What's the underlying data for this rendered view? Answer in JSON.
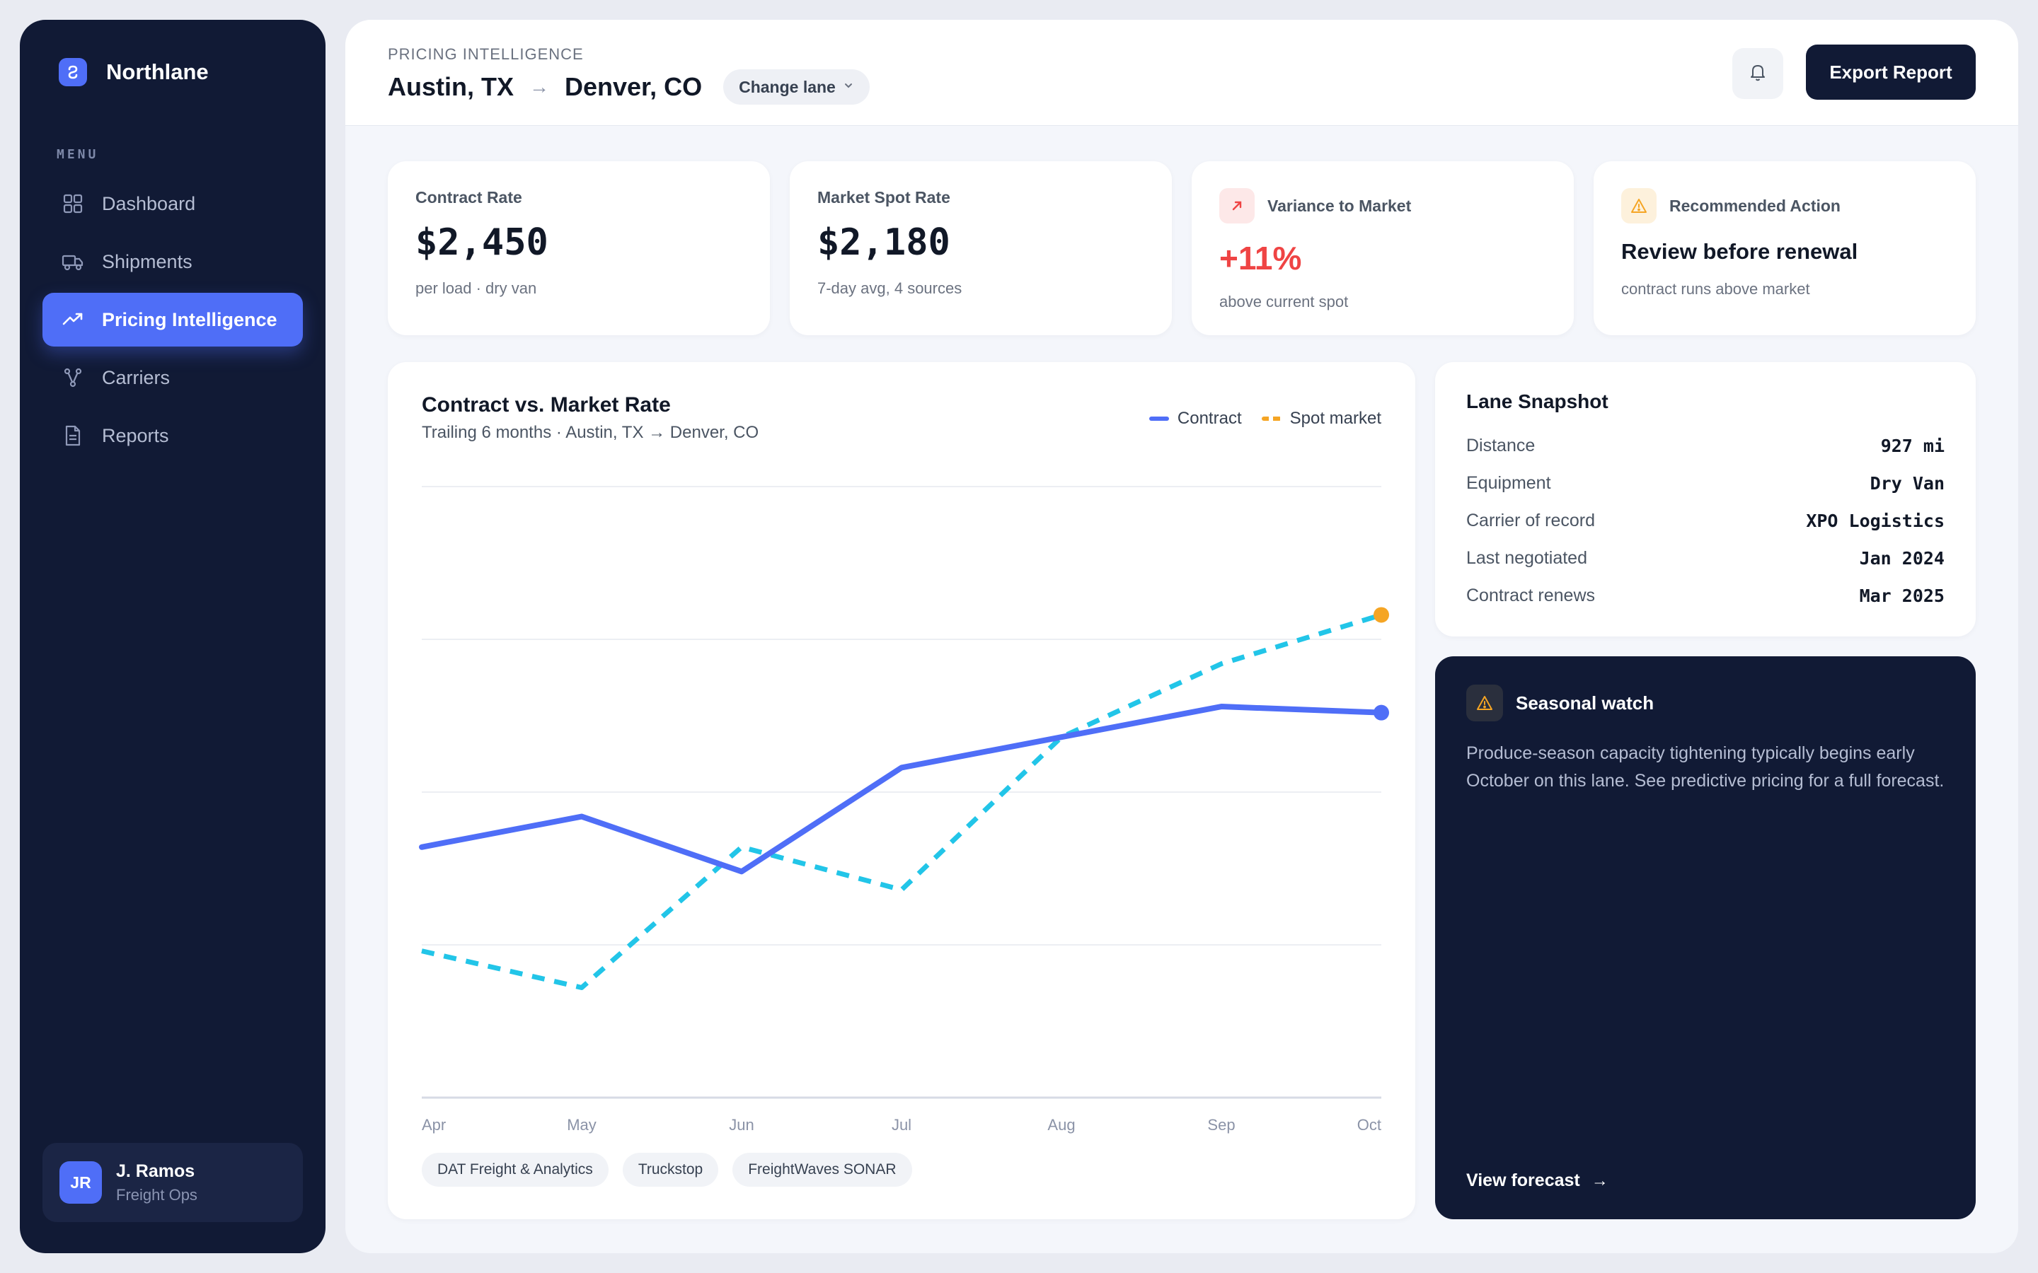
{
  "brand": {
    "name": "Northlane"
  },
  "sidebar": {
    "menu_label": "MENU",
    "items": [
      {
        "label": "Dashboard",
        "icon": "grid-icon",
        "active": false
      },
      {
        "label": "Shipments",
        "icon": "truck-icon",
        "active": false
      },
      {
        "label": "Pricing Intelligence",
        "icon": "trending-up-icon",
        "active": true
      },
      {
        "label": "Carriers",
        "icon": "network-icon",
        "active": false
      },
      {
        "label": "Reports",
        "icon": "document-icon",
        "active": false
      }
    ],
    "user": {
      "initials": "JR",
      "name": "J. Ramos",
      "role": "Freight Ops"
    }
  },
  "header": {
    "eyebrow": "PRICING INTELLIGENCE",
    "origin": "Austin, TX",
    "destination": "Denver, CO",
    "change_lane_label": "Change lane",
    "export_label": "Export Report"
  },
  "stats": {
    "contract": {
      "label": "Contract Rate",
      "value": "$2,450",
      "sub": "per load · dry van"
    },
    "spot": {
      "label": "Market Spot Rate",
      "value": "$2,180",
      "sub": "7-day avg, 4 sources"
    },
    "variance": {
      "label": "Variance to Market",
      "value": "+11%",
      "sub": "above current spot"
    },
    "action": {
      "label": "Recommended Action",
      "value": "Review before renewal",
      "sub": "contract runs above market"
    }
  },
  "chart": {
    "title": "Contract vs. Market Rate",
    "subtitle": "Trailing 6 months · Austin, TX → Denver, CO",
    "sources": [
      "DAT Freight & Analytics",
      "Truckstop",
      "FreightWaves SONAR"
    ]
  },
  "chart_data": {
    "type": "line",
    "categories": [
      "Apr",
      "May",
      "Jun",
      "Jul",
      "Aug",
      "Sep",
      "Oct"
    ],
    "series": [
      {
        "name": "Contract",
        "color": "#4f6ef7",
        "style": "solid",
        "values": [
          0.41,
          0.46,
          0.37,
          0.54,
          0.59,
          0.64,
          0.63
        ]
      },
      {
        "name": "Spot market",
        "legend_color": "#f5a524",
        "color": "#22c5e8",
        "style": "dashed",
        "values": [
          0.24,
          0.18,
          0.41,
          0.34,
          0.59,
          0.71,
          0.79
        ]
      }
    ],
    "ylim": [
      0,
      1
    ],
    "grid": true,
    "legend": "top-right",
    "xlabel": "",
    "ylabel": ""
  },
  "snapshot": {
    "title": "Lane Snapshot",
    "rows": [
      {
        "key": "Distance",
        "value": "927 mi"
      },
      {
        "key": "Equipment",
        "value": "Dry Van"
      },
      {
        "key": "Carrier of record",
        "value": "XPO Logistics"
      },
      {
        "key": "Last negotiated",
        "value": "Jan 2024"
      },
      {
        "key": "Contract renews",
        "value": "Mar 2025"
      }
    ]
  },
  "seasonal": {
    "title": "Seasonal watch",
    "body": "Produce-season capacity tightening typically begins early October on this lane. See predictive pricing for a full forecast.",
    "link_label": "View forecast"
  },
  "colors": {
    "accent": "#4f6ef7",
    "navy": "#111a35",
    "danger": "#ef4444",
    "warning": "#f5a524",
    "spot": "#22c5e8"
  }
}
